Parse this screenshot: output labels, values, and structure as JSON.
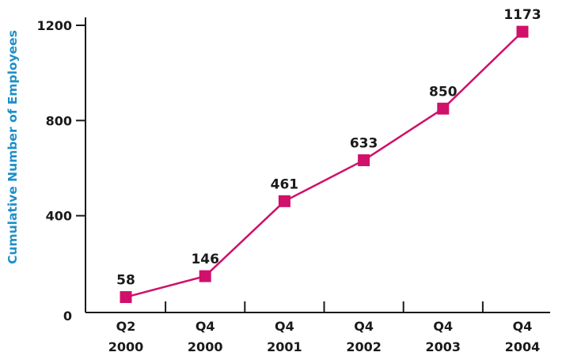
{
  "chart_data": {
    "type": "line",
    "title": "",
    "xlabel": "",
    "ylabel": "Cumulative Number of Employees",
    "categories": [
      [
        "Q2",
        "2000"
      ],
      [
        "Q4",
        "2000"
      ],
      [
        "Q4",
        "2001"
      ],
      [
        "Q4",
        "2002"
      ],
      [
        "Q4",
        "2003"
      ],
      [
        "Q4",
        "2004"
      ]
    ],
    "series": [
      {
        "values": [
          58,
          146,
          461,
          633,
          850,
          1173
        ]
      }
    ],
    "ylim": [
      0,
      1200
    ],
    "yticks": [
      0,
      400,
      800,
      1200
    ],
    "grid": false,
    "legend": "none",
    "colors": {
      "line": "#d0106b",
      "marker": "#d0106b",
      "ylabel": "#1e90c8",
      "axis": "#1a1a1a"
    }
  }
}
